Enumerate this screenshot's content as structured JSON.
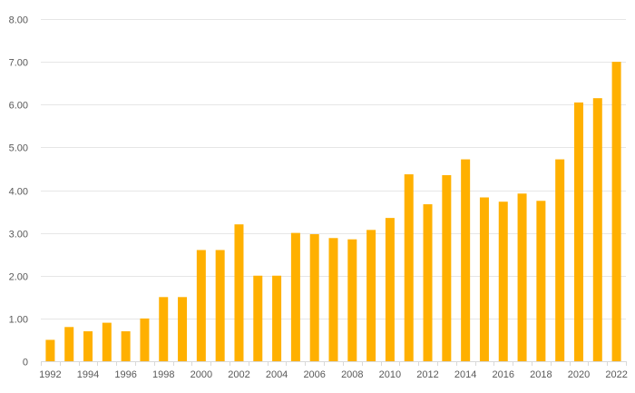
{
  "chart_data": {
    "type": "bar",
    "title": "",
    "xlabel": "",
    "ylabel": "",
    "ylim": [
      0,
      8
    ],
    "yticks": [
      "0",
      "1.00",
      "2.00",
      "3.00",
      "4.00",
      "5.00",
      "6.00",
      "7.00",
      "8.00"
    ],
    "grid": true,
    "bar_color": "#FFB000",
    "categories": [
      "1992",
      "1993",
      "1994",
      "1995",
      "1996",
      "1997",
      "1998",
      "1999",
      "2000",
      "2001",
      "2002",
      "2003",
      "2004",
      "2005",
      "2006",
      "2007",
      "2008",
      "2009",
      "2010",
      "2011",
      "2012",
      "2013",
      "2014",
      "2015",
      "2016",
      "2017",
      "2018",
      "2019",
      "2020",
      "2021",
      "2022"
    ],
    "xtick_labels": [
      "1992",
      "",
      "1994",
      "",
      "1996",
      "",
      "1998",
      "",
      "2000",
      "",
      "2002",
      "",
      "2004",
      "",
      "2006",
      "",
      "2008",
      "",
      "2010",
      "",
      "2012",
      "",
      "2014",
      "",
      "2016",
      "",
      "2018",
      "",
      "2020",
      "",
      "2022"
    ],
    "values": [
      0.5,
      0.8,
      0.7,
      0.9,
      0.7,
      1.0,
      1.5,
      1.5,
      2.6,
      2.6,
      3.2,
      2.0,
      2.0,
      3.0,
      2.97,
      2.88,
      2.85,
      3.07,
      3.35,
      4.37,
      3.67,
      4.35,
      4.72,
      3.83,
      3.73,
      3.92,
      3.75,
      4.72,
      6.05,
      6.15,
      7.0
    ]
  }
}
